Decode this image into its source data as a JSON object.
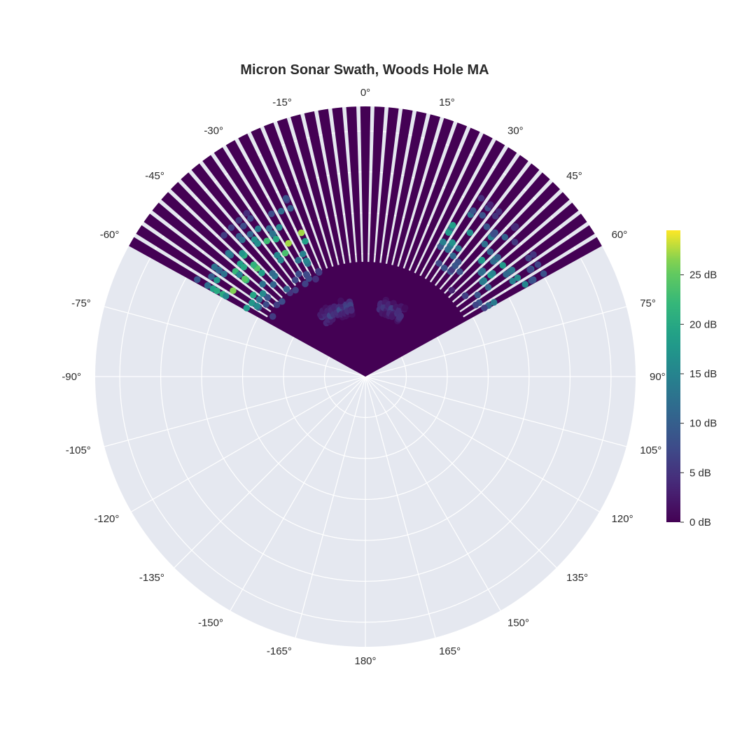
{
  "chart_data": {
    "type": "polar-scatter",
    "title": "Micron Sonar Swath, Woods Hole MA",
    "angular_axis": {
      "direction": "clockwise",
      "rotation": "0 at top",
      "range": [
        -180,
        180
      ],
      "tick_labels": [
        "0°",
        "15°",
        "30°",
        "45°",
        "60°",
        "75°",
        "90°",
        "105°",
        "120°",
        "135°",
        "150°",
        "165°",
        "180°",
        "-165°",
        "-150°",
        "-135°",
        "-120°",
        "-105°",
        "-90°",
        "-75°",
        "-60°",
        "-45°",
        "-30°",
        "-15°"
      ]
    },
    "radial_axis": {
      "range": [
        0,
        20
      ],
      "tick_labels_visible": false,
      "gridlines": 6
    },
    "swath": {
      "angle_range": [
        -60,
        60
      ],
      "beam_step_deg": 3,
      "max_range": 20,
      "background_value_db": 0
    },
    "colorscale": {
      "name": "Viridis",
      "min": 0,
      "max": 29.5,
      "ticks": [
        {
          "value": 0,
          "label": "0 dB"
        },
        {
          "value": 5,
          "label": "5 dB"
        },
        {
          "value": 10,
          "label": "10 dB"
        },
        {
          "value": 15,
          "label": "15 dB"
        },
        {
          "value": 20,
          "label": "20 dB"
        },
        {
          "value": 25,
          "label": "25 dB"
        }
      ]
    },
    "returns": [
      {
        "name": "seabed-near-left",
        "angle_range": [
          -36,
          -12
        ],
        "range_center": 5.3,
        "range_spread": 0.6,
        "peak_db": 8
      },
      {
        "name": "seabed-near-right",
        "angle_range": [
          12,
          30
        ],
        "range_center": 5.3,
        "range_spread": 0.6,
        "peak_db": 7
      },
      {
        "name": "reflector-left",
        "angle_range": [
          -60,
          -24
        ],
        "range_center": 11.5,
        "range_spread": 3.5,
        "peak_db": 29
      },
      {
        "name": "reflector-right",
        "angle_range": [
          30,
          60
        ],
        "range_center": 12.5,
        "range_spread": 3.5,
        "peak_db": 22
      }
    ],
    "grid": true,
    "legend": "colorbar-right"
  }
}
